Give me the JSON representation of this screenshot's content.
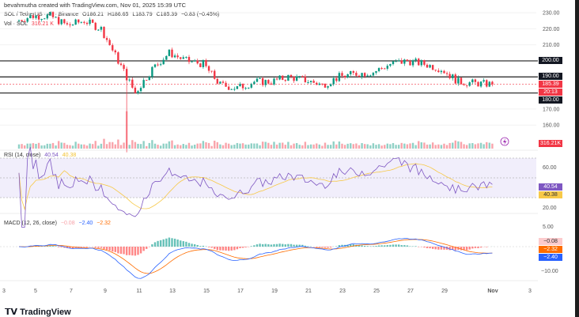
{
  "header": {
    "credit": "bevahmutha created with TradingView.com, Nov 01, 2025 15:39 UTC"
  },
  "legend": {
    "symbol": "SOL / TetherUS · 4h · Binance",
    "open": "O186.21",
    "high": "H186.65",
    "low": "L183.79",
    "close": "C185.39",
    "change": "−0.83 (−0.45%)",
    "vol_label": "Vol · SOL",
    "vol_value": "316.21 K"
  },
  "rsi": {
    "label": "RSI (14, close)",
    "value": "40.54",
    "ma": "40.38"
  },
  "macd": {
    "label": "MACD (12, 26, close)",
    "hist": "−0.08",
    "macd": "−2.40",
    "signal": "−2.32"
  },
  "price_scale": [
    "230.00",
    "220.00",
    "210.00",
    "200.00",
    "190.00",
    "180.00",
    "170.00",
    "160.00"
  ],
  "tags": {
    "l200": "200.00",
    "l190": "190.00",
    "price": "185.39",
    "countdown": "20:13",
    "l180": "180.00",
    "vol": "316.21K",
    "rsi": "40.54",
    "rsi_ma": "40.38",
    "rsi_60": "60.00",
    "rsi_20": "20.00",
    "macd_5": "5.00",
    "macd_m10": "−10.00",
    "hist": "−0.08",
    "signal": "−2.32",
    "macd_val": "−2.40"
  },
  "x_labels": [
    "3",
    "5",
    "7",
    "9",
    "11",
    "13",
    "15",
    "17",
    "19",
    "21",
    "23",
    "25",
    "27",
    "29",
    "Nov",
    "3"
  ],
  "logo": "TradingView",
  "colors": {
    "up": "#089981",
    "down": "#f23645",
    "rsi": "#7e57c2",
    "rsi_ma": "#f7c948",
    "macd": "#2962ff",
    "signal": "#ff6d00"
  },
  "chart_data": {
    "type": "candlestick",
    "x_dates": [
      "Oct 4",
      "Oct 5",
      "Oct 6",
      "Oct 7",
      "Oct 8",
      "Oct 9",
      "Oct 10",
      "Oct 11",
      "Oct 12",
      "Oct 13",
      "Oct 14",
      "Oct 15",
      "Oct 16",
      "Oct 17",
      "Oct 18",
      "Oct 19",
      "Oct 20",
      "Oct 21",
      "Oct 22",
      "Oct 23",
      "Oct 24",
      "Oct 25",
      "Oct 26",
      "Oct 27",
      "Oct 28",
      "Oct 29",
      "Oct 30",
      "Oct 31",
      "Nov 1"
    ],
    "closes": [
      225,
      228,
      228,
      222,
      225,
      220,
      200,
      180,
      195,
      205,
      200,
      198,
      185,
      183,
      187,
      187,
      190,
      188,
      185,
      190,
      192,
      193,
      198,
      200,
      198,
      195,
      187,
      186,
      185.39
    ],
    "horizontal_levels": [
      200,
      190,
      180
    ],
    "ylim": [
      150,
      235
    ]
  }
}
